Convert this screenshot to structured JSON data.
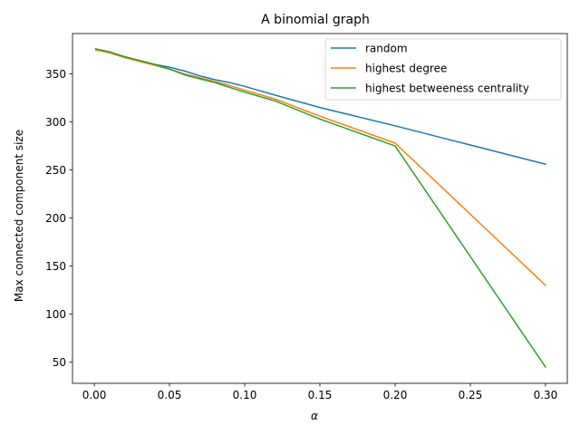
{
  "chart_data": {
    "type": "line",
    "title": "A binomial graph",
    "xlabel": "α",
    "ylabel": "Max connected component size",
    "xlim": [
      -0.0145,
      0.3145
    ],
    "ylim": [
      28,
      392
    ],
    "xticks": [
      0.0,
      0.05,
      0.1,
      0.15,
      0.2,
      0.25,
      0.3
    ],
    "xtick_labels": [
      "0.00",
      "0.05",
      "0.10",
      "0.15",
      "0.20",
      "0.25",
      "0.30"
    ],
    "yticks": [
      50,
      100,
      150,
      200,
      250,
      300,
      350
    ],
    "ytick_labels": [
      "50",
      "100",
      "150",
      "200",
      "250",
      "300",
      "350"
    ],
    "grid": false,
    "legend_position": "top-right",
    "series": [
      {
        "name": "random",
        "color": "#1f77b4",
        "x": [
          0.001,
          0.01,
          0.02,
          0.03,
          0.04,
          0.05,
          0.06,
          0.07,
          0.08,
          0.09,
          0.1,
          0.12,
          0.15,
          0.2,
          0.3
        ],
        "y": [
          376,
          372,
          368,
          364,
          360,
          357,
          353,
          348,
          344,
          341,
          337,
          328,
          315,
          296,
          256
        ]
      },
      {
        "name": "highest degree",
        "color": "#ff7f0e",
        "x": [
          0.001,
          0.01,
          0.02,
          0.03,
          0.04,
          0.05,
          0.06,
          0.07,
          0.08,
          0.09,
          0.1,
          0.12,
          0.15,
          0.2,
          0.3
        ],
        "y": [
          375,
          372,
          367,
          363,
          359,
          355,
          350,
          346,
          342,
          338,
          333,
          324,
          306,
          278,
          130
        ]
      },
      {
        "name": "highest betweeness centrality",
        "color": "#2ca02c",
        "x": [
          0.001,
          0.01,
          0.02,
          0.03,
          0.04,
          0.05,
          0.06,
          0.07,
          0.08,
          0.09,
          0.1,
          0.12,
          0.15,
          0.2,
          0.3
        ],
        "y": [
          376,
          373,
          368,
          364,
          360,
          355,
          349,
          345,
          341,
          336,
          331,
          322,
          303,
          275,
          45
        ]
      }
    ]
  }
}
